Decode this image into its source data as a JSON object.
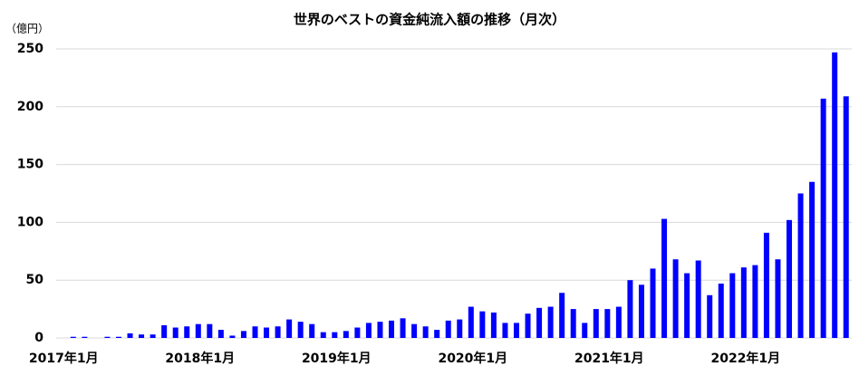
{
  "chart_data": {
    "type": "bar",
    "title": "世界のベストの資金純流入額の推移（月次）",
    "y_unit_label": "（億円）",
    "categories": [
      "2017年1月",
      null,
      null,
      null,
      null,
      null,
      null,
      null,
      null,
      null,
      null,
      null,
      "2018年1月",
      null,
      null,
      null,
      null,
      null,
      null,
      null,
      null,
      null,
      null,
      null,
      "2019年1月",
      null,
      null,
      null,
      null,
      null,
      null,
      null,
      null,
      null,
      null,
      null,
      "2020年1月",
      null,
      null,
      null,
      null,
      null,
      null,
      null,
      null,
      null,
      null,
      null,
      "2021年1月",
      null,
      null,
      null,
      null,
      null,
      null,
      null,
      null,
      null,
      null,
      null,
      "2022年1月",
      null,
      null,
      null,
      null,
      null,
      null,
      null,
      null,
      null
    ],
    "values": [
      0,
      1,
      1,
      0,
      1,
      1,
      4,
      3,
      3,
      11,
      9,
      10,
      12,
      12,
      7,
      2,
      6,
      10,
      9,
      10,
      16,
      14,
      12,
      5,
      5,
      6,
      9,
      13,
      14,
      15,
      17,
      12,
      10,
      7,
      15,
      16,
      27,
      23,
      22,
      13,
      13,
      21,
      26,
      27,
      39,
      25,
      13,
      25,
      25,
      27,
      50,
      46,
      60,
      103,
      68,
      56,
      67,
      37,
      47,
      56,
      61,
      63,
      91,
      68,
      102,
      125,
      135,
      207,
      247,
      209
    ],
    "color": "#0000ff",
    "ylim": [
      0,
      250
    ],
    "yticks": [
      0,
      50,
      100,
      150,
      200,
      250
    ],
    "grid": true
  }
}
